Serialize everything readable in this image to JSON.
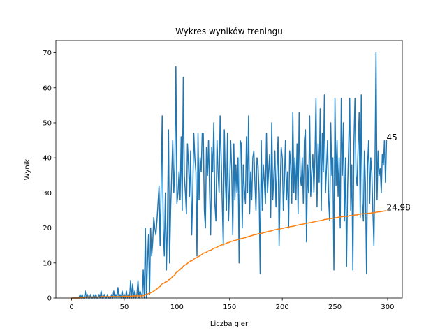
{
  "chart_data": {
    "type": "line",
    "title": "Wykres wyników treningu",
    "x_label": "Liczba gier",
    "y_label": "Wynik",
    "x": [
      0,
      1,
      2,
      3,
      4,
      5,
      6,
      7,
      8,
      9,
      10,
      11,
      12,
      13,
      14,
      15,
      16,
      17,
      18,
      19,
      20,
      21,
      22,
      23,
      24,
      25,
      26,
      27,
      28,
      29,
      30,
      31,
      32,
      33,
      34,
      35,
      36,
      37,
      38,
      39,
      40,
      41,
      42,
      43,
      44,
      45,
      46,
      47,
      48,
      49,
      50,
      51,
      52,
      53,
      54,
      55,
      56,
      57,
      58,
      59,
      60,
      61,
      62,
      63,
      64,
      65,
      66,
      67,
      68,
      69,
      70,
      71,
      72,
      73,
      74,
      75,
      76,
      77,
      78,
      79,
      80,
      81,
      82,
      83,
      84,
      85,
      86,
      87,
      88,
      89,
      90,
      91,
      92,
      93,
      94,
      95,
      96,
      97,
      98,
      99,
      100,
      101,
      102,
      103,
      104,
      105,
      106,
      107,
      108,
      109,
      110,
      111,
      112,
      113,
      114,
      115,
      116,
      117,
      118,
      119,
      120,
      121,
      122,
      123,
      124,
      125,
      126,
      127,
      128,
      129,
      130,
      131,
      132,
      133,
      134,
      135,
      136,
      137,
      138,
      139,
      140,
      141,
      142,
      143,
      144,
      145,
      146,
      147,
      148,
      149,
      150,
      151,
      152,
      153,
      154,
      155,
      156,
      157,
      158,
      159,
      160,
      161,
      162,
      163,
      164,
      165,
      166,
      167,
      168,
      169,
      170,
      171,
      172,
      173,
      174,
      175,
      176,
      177,
      178,
      179,
      180,
      181,
      182,
      183,
      184,
      185,
      186,
      187,
      188,
      189,
      190,
      191,
      192,
      193,
      194,
      195,
      196,
      197,
      198,
      199,
      200,
      201,
      202,
      203,
      204,
      205,
      206,
      207,
      208,
      209,
      210,
      211,
      212,
      213,
      214,
      215,
      216,
      217,
      218,
      219,
      220,
      221,
      222,
      223,
      224,
      225,
      226,
      227,
      228,
      229,
      230,
      231,
      232,
      233,
      234,
      235,
      236,
      237,
      238,
      239,
      240,
      241,
      242,
      243,
      244,
      245,
      246,
      247,
      248,
      249,
      250,
      251,
      252,
      253,
      254,
      255,
      256,
      257,
      258,
      259,
      260,
      261,
      262,
      263,
      264,
      265,
      266,
      267,
      268,
      269,
      270,
      271,
      272,
      273,
      274,
      275,
      276,
      277,
      278,
      279,
      280,
      281,
      282,
      283,
      284,
      285,
      286,
      287,
      288,
      289,
      290,
      291,
      292,
      293,
      294,
      295,
      296,
      297,
      298,
      299
    ],
    "series": [
      {
        "color": "#1f77b4",
        "values": [
          0,
          0,
          0,
          0,
          0,
          0,
          0,
          0,
          1,
          0,
          1,
          0,
          0,
          2,
          0,
          1,
          0,
          0,
          1,
          0,
          0,
          1,
          0,
          1,
          0,
          0,
          1,
          0,
          2,
          0,
          0,
          1,
          0,
          0,
          1,
          0,
          0,
          0,
          1,
          0,
          2,
          0,
          1,
          0,
          3,
          0,
          1,
          0,
          2,
          0,
          1,
          0,
          2,
          0,
          1,
          0,
          5,
          0,
          4,
          0,
          2,
          0,
          1,
          5,
          0,
          2,
          1,
          0,
          8,
          0,
          20,
          0,
          10,
          18,
          1,
          20,
          12,
          16,
          23,
          20,
          18,
          22,
          27,
          32,
          15,
          32,
          52,
          20,
          12,
          30,
          8,
          22,
          48,
          10,
          25,
          35,
          45,
          30,
          38,
          66,
          27,
          30,
          36,
          28,
          46,
          25,
          63,
          35,
          30,
          24,
          44,
          38,
          29,
          42,
          18,
          30,
          47,
          40,
          36,
          12,
          47,
          28,
          40,
          36,
          47,
          47,
          25,
          20,
          43,
          35,
          45,
          30,
          18,
          43,
          36,
          50,
          27,
          22,
          45,
          36,
          30,
          52,
          40,
          27,
          15,
          48,
          33,
          25,
          47,
          22,
          32,
          45,
          36,
          18,
          44,
          28,
          38,
          30,
          40,
          10,
          45,
          44,
          20,
          38,
          31,
          27,
          46,
          30,
          52,
          24,
          36,
          28,
          40,
          42,
          33,
          25,
          40,
          38,
          30,
          7,
          45,
          25,
          38,
          33,
          27,
          47,
          30,
          36,
          41,
          23,
          50,
          28,
          35,
          42,
          26,
          37,
          46,
          15,
          32,
          43,
          40,
          25,
          33,
          45,
          28,
          36,
          20,
          42,
          38,
          27,
          53,
          30,
          40,
          28,
          44,
          24,
          53,
          35,
          32,
          40,
          27,
          45,
          48,
          16,
          38,
          30,
          52,
          29,
          36,
          41,
          30,
          40,
          57,
          26,
          44,
          33,
          54,
          25,
          47,
          36,
          58,
          30,
          37,
          45,
          28,
          22,
          50,
          35,
          40,
          8,
          57,
          32,
          45,
          29,
          40,
          20,
          57,
          35,
          50,
          22,
          40,
          9,
          31,
          43,
          57,
          25,
          38,
          8,
          44,
          57,
          35,
          32,
          43,
          53,
          23,
          58,
          27,
          22,
          42,
          32,
          7,
          38,
          45,
          27,
          40,
          36,
          25,
          15,
          38,
          70,
          28,
          42,
          35,
          37,
          30,
          41,
          38,
          45,
          33,
          45
        ]
      },
      {
        "color": "#ff7f0e",
        "values": [
          0,
          0,
          0,
          0,
          0,
          0,
          0,
          0,
          0.1,
          0.1,
          0.2,
          0.2,
          0.2,
          0.3,
          0.3,
          0.3,
          0.3,
          0.3,
          0.3,
          0.3,
          0.3,
          0.3,
          0.3,
          0.3,
          0.3,
          0.3,
          0.3,
          0.3,
          0.4,
          0.4,
          0.4,
          0.4,
          0.4,
          0.4,
          0.4,
          0.4,
          0.4,
          0.4,
          0.4,
          0.4,
          0.4,
          0.4,
          0.4,
          0.4,
          0.4,
          0.4,
          0.4,
          0.4,
          0.5,
          0.5,
          0.5,
          0.5,
          0.5,
          0.5,
          0.5,
          0.5,
          0.5,
          0.5,
          0.6,
          0.6,
          0.6,
          0.6,
          0.6,
          0.6,
          0.6,
          0.6,
          0.6,
          0.6,
          0.7,
          0.7,
          1.0,
          1.0,
          1.1,
          1.3,
          1.3,
          1.5,
          1.6,
          1.8,
          2.0,
          2.2,
          2.4,
          2.6,
          2.9,
          3.2,
          3.3,
          3.6,
          4.1,
          4.2,
          4.3,
          4.6,
          4.6,
          4.8,
          5.2,
          5.3,
          5.5,
          5.8,
          6.2,
          6.3,
          6.6,
          7.2,
          7.4,
          7.6,
          7.9,
          8.1,
          8.5,
          8.6,
          9.1,
          9.3,
          9.5,
          9.6,
          9.9,
          10.2,
          10.3,
          10.6,
          10.6,
          10.8,
          11.1,
          11.3,
          11.5,
          11.5,
          11.8,
          11.9,
          12.1,
          12.3,
          12.5,
          12.8,
          12.9,
          12.9,
          13.1,
          13.3,
          13.5,
          13.6,
          13.6,
          13.8,
          14.0,
          14.2,
          14.3,
          14.3,
          14.5,
          14.7,
          14.8,
          15.0,
          15.1,
          15.2,
          15.2,
          15.4,
          15.5,
          15.6,
          15.8,
          15.8,
          15.9,
          16.1,
          16.2,
          16.2,
          16.4,
          16.4,
          16.5,
          16.6,
          16.7,
          16.7,
          16.8,
          17.0,
          17.0,
          17.1,
          17.2,
          17.2,
          17.4,
          17.4,
          17.6,
          17.6,
          17.7,
          17.8,
          17.9,
          18.0,
          18.1,
          18.1,
          18.2,
          18.3,
          18.4,
          18.3,
          18.5,
          18.5,
          18.6,
          18.7,
          18.7,
          18.9,
          18.9,
          19.0,
          19.1,
          19.1,
          19.2,
          19.3,
          19.4,
          19.5,
          19.5,
          19.6,
          19.7,
          19.6,
          19.7,
          19.8,
          19.9,
          19.9,
          20.0,
          20.1,
          20.1,
          20.2,
          20.2,
          20.3,
          20.4,
          20.4,
          20.5,
          20.5,
          20.6,
          20.7,
          20.8,
          20.8,
          20.9,
          21.0,
          21.0,
          21.1,
          21.1,
          21.2,
          21.3,
          21.3,
          21.4,
          21.4,
          21.5,
          21.5,
          21.6,
          21.7,
          21.7,
          21.8,
          21.9,
          21.9,
          22.0,
          22.0,
          22.1,
          22.1,
          22.2,
          22.3,
          22.4,
          22.4,
          22.5,
          22.5,
          22.6,
          22.6,
          22.7,
          22.7,
          22.8,
          22.7,
          22.9,
          22.9,
          23.0,
          23.0,
          23.1,
          23.1,
          23.2,
          23.2,
          23.3,
          23.3,
          23.3,
          23.3,
          23.3,
          23.4,
          23.5,
          23.5,
          23.5,
          23.5,
          23.6,
          23.7,
          23.7,
          23.7,
          23.8,
          23.9,
          23.9,
          24.0,
          24.0,
          24.0,
          24.1,
          24.1,
          24.0,
          24.1,
          24.2,
          24.2,
          24.2,
          24.3,
          24.3,
          24.3,
          24.4,
          24.5,
          24.5,
          24.6,
          24.6,
          24.6,
          24.7,
          24.7,
          24.8,
          24.8,
          24.9,
          24.98
        ]
      }
    ],
    "end_labels": [
      "45",
      "24.98"
    ],
    "xlim": [
      -14.95,
      313.95
    ],
    "ylim": [
      0,
      73.5
    ],
    "xticks": [
      0,
      50,
      100,
      150,
      200,
      250,
      300
    ],
    "yticks": [
      0,
      10,
      20,
      30,
      40,
      50,
      60,
      70
    ],
    "grid": false
  }
}
